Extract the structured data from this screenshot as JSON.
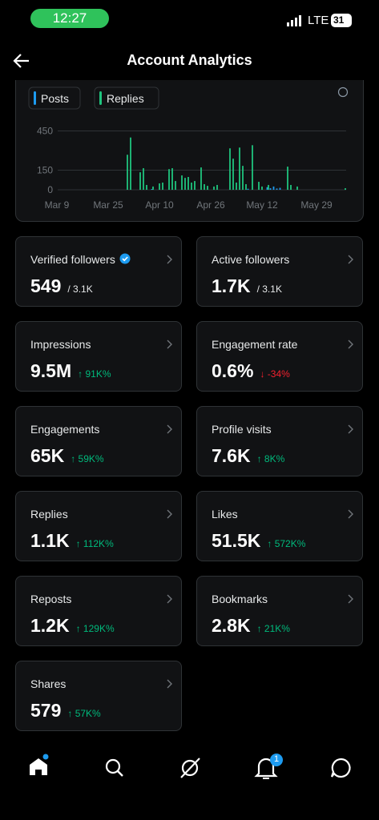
{
  "status_bar": {
    "time": "12:27",
    "network": "LTE",
    "battery": "31"
  },
  "header": {
    "title": "Account Analytics"
  },
  "chart_data": {
    "type": "bar",
    "series": [
      {
        "name": "Posts",
        "color": "#1d9bf0",
        "x": [
          30,
          60,
          66,
          67,
          68,
          69,
          70
        ],
        "values": [
          6,
          8,
          20,
          12,
          25,
          10,
          15
        ]
      },
      {
        "name": "Replies",
        "color": "#1fc47e",
        "x": [
          22,
          23,
          26,
          27,
          28,
          30,
          32,
          33,
          35,
          36,
          37,
          39,
          40,
          41,
          42,
          43,
          45,
          46,
          47,
          49,
          50,
          54,
          55,
          56,
          57,
          58,
          59,
          61,
          63,
          64,
          66,
          72,
          73,
          75,
          90
        ],
        "values": [
          268,
          400,
          134,
          165,
          37,
          25,
          49,
          55,
          158,
          165,
          67,
          110,
          91,
          98,
          55,
          67,
          171,
          43,
          30,
          25,
          37,
          317,
          238,
          55,
          323,
          183,
          43,
          341,
          61,
          25,
          37,
          177,
          37,
          25,
          12
        ]
      }
    ],
    "xlim": [
      -8,
      91
    ],
    "xticks": [
      {
        "value": 0,
        "label": "Mar 9"
      },
      {
        "value": 16,
        "label": "Mar 25"
      },
      {
        "value": 32,
        "label": "Apr 10"
      },
      {
        "value": 48,
        "label": "Apr 26"
      },
      {
        "value": 64,
        "label": "May 12"
      },
      {
        "value": 81,
        "label": "May 29"
      }
    ],
    "ylim": [
      0,
      490
    ],
    "yticks": [
      0,
      150,
      450
    ],
    "grid": true
  },
  "cards": [
    {
      "label": "Verified followers",
      "value": "549",
      "sub": "/ 3.1K",
      "verified": true
    },
    {
      "label": "Active followers",
      "value": "1.7K",
      "sub": "/ 3.1K"
    },
    {
      "label": "Impressions",
      "value": "9.5M",
      "sub": "↑ 91K%",
      "sub_color": "#00ba7c"
    },
    {
      "label": "Engagement rate",
      "value": "0.6%",
      "sub": "↓ -34%",
      "sub_color": "#f4212e"
    },
    {
      "label": "Engagements",
      "value": "65K",
      "sub": "↑ 59K%",
      "sub_color": "#00ba7c"
    },
    {
      "label": "Profile visits",
      "value": "7.6K",
      "sub": "↑ 8K%",
      "sub_color": "#00ba7c"
    },
    {
      "label": "Replies",
      "value": "1.1K",
      "sub": "↑ 112K%",
      "sub_color": "#00ba7c"
    },
    {
      "label": "Likes",
      "value": "51.5K",
      "sub": "↑ 572K%",
      "sub_color": "#00ba7c"
    },
    {
      "label": "Reposts",
      "value": "1.2K",
      "sub": "↑ 129K%",
      "sub_color": "#00ba7c"
    },
    {
      "label": "Bookmarks",
      "value": "2.8K",
      "sub": "↑ 21K%",
      "sub_color": "#00ba7c"
    },
    {
      "label": "Shares",
      "value": "579",
      "sub": "↑ 57K%",
      "sub_color": "#00ba7c"
    }
  ],
  "nav": {
    "notifications_badge": "1"
  }
}
